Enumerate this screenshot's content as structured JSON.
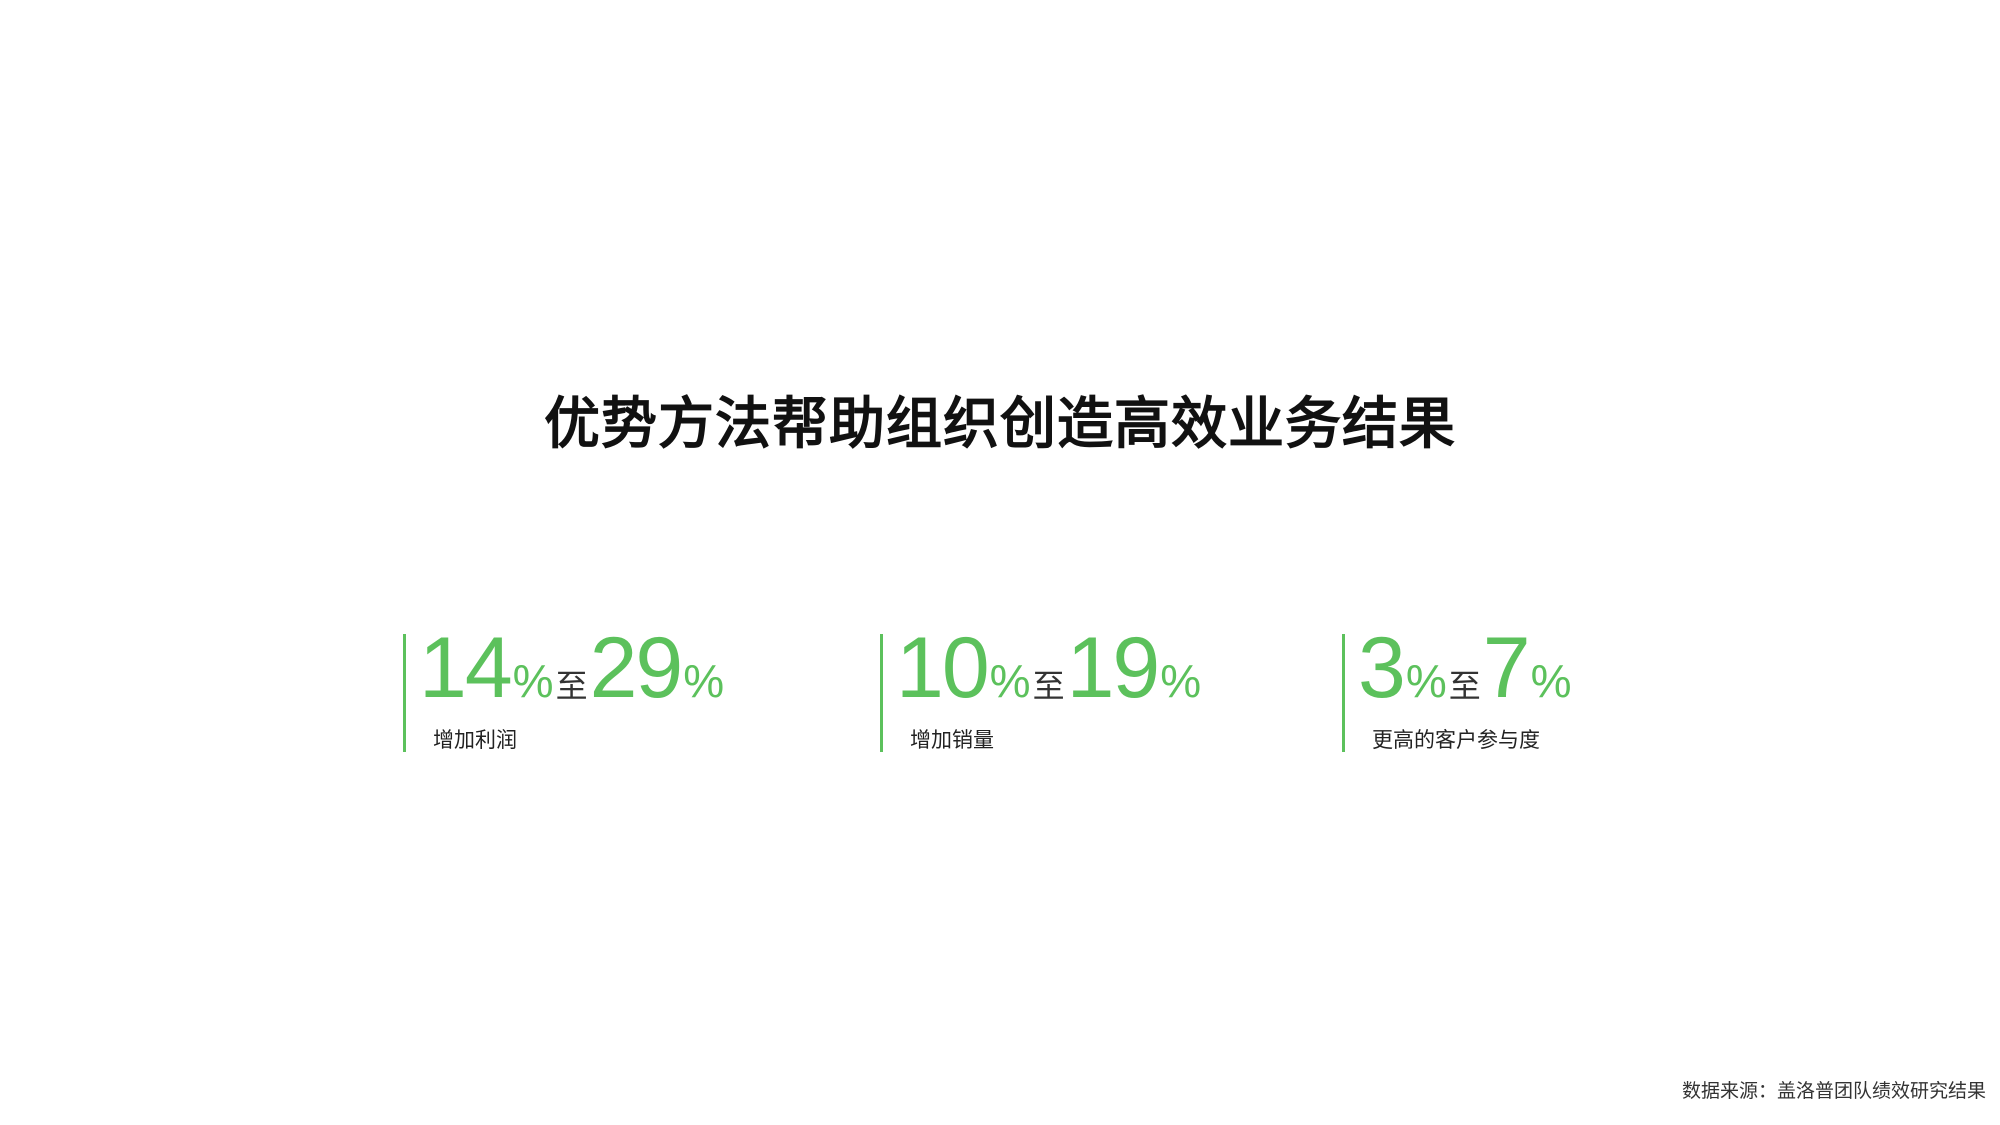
{
  "title": "优势方法帮助组织创造高效业务结果",
  "accent_color": "#5cc15c",
  "stats": [
    {
      "from": "14",
      "pct1": "%",
      "connector": "至",
      "to": "29",
      "pct2": "%",
      "label": "增加利润"
    },
    {
      "from": "10",
      "pct1": "%",
      "connector": "至",
      "to": "19",
      "pct2": "%",
      "label": "增加销量"
    },
    {
      "from": "3",
      "pct1": "%",
      "connector": "至",
      "to": "7",
      "pct2": "%",
      "label": "更高的客户参与度"
    }
  ],
  "source": "数据来源：盖洛普团队绩效研究结果"
}
